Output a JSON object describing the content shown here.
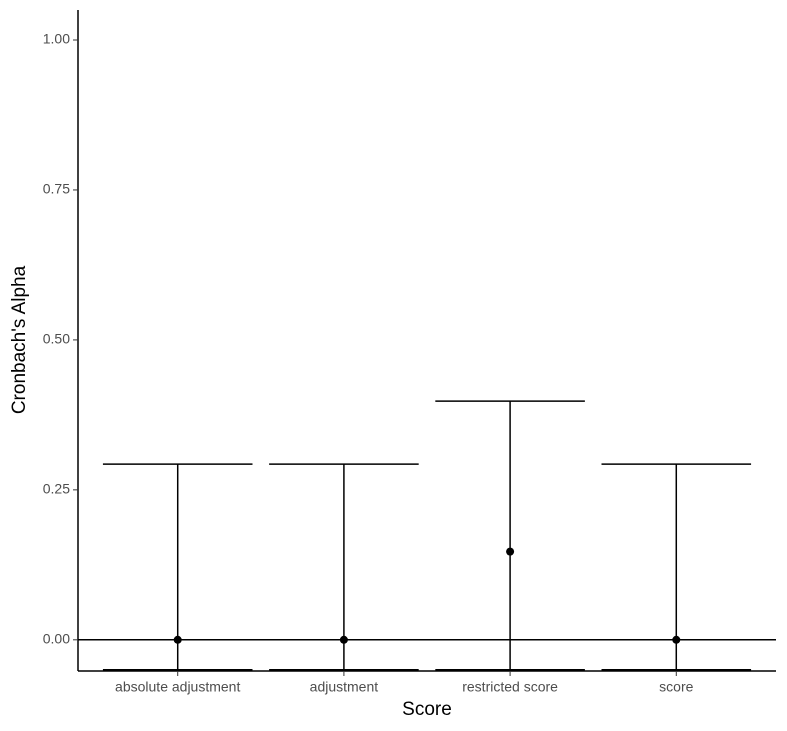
{
  "chart_data": {
    "type": "errorbar",
    "x_label": "Score",
    "y_label": "Cronbach's Alpha",
    "categories": [
      "absolute adjustment",
      "adjustment",
      "restricted score",
      "score"
    ],
    "values": [
      0,
      0,
      0.147,
      0
    ],
    "upper": [
      0.293,
      0.293,
      0.398,
      0.293
    ],
    "lower": [
      -0.05,
      -0.05,
      -0.05,
      -0.05
    ],
    "hline": 0,
    "ylim": [
      -0.052,
      1.05
    ],
    "yticks": [
      {
        "value": 0,
        "label": "0.00"
      },
      {
        "value": 0.25,
        "label": "0.25"
      },
      {
        "value": 0.5,
        "label": "0.50"
      },
      {
        "value": 0.75,
        "label": "0.75"
      },
      {
        "value": 1,
        "label": "1.00"
      }
    ],
    "color": "#000000"
  }
}
